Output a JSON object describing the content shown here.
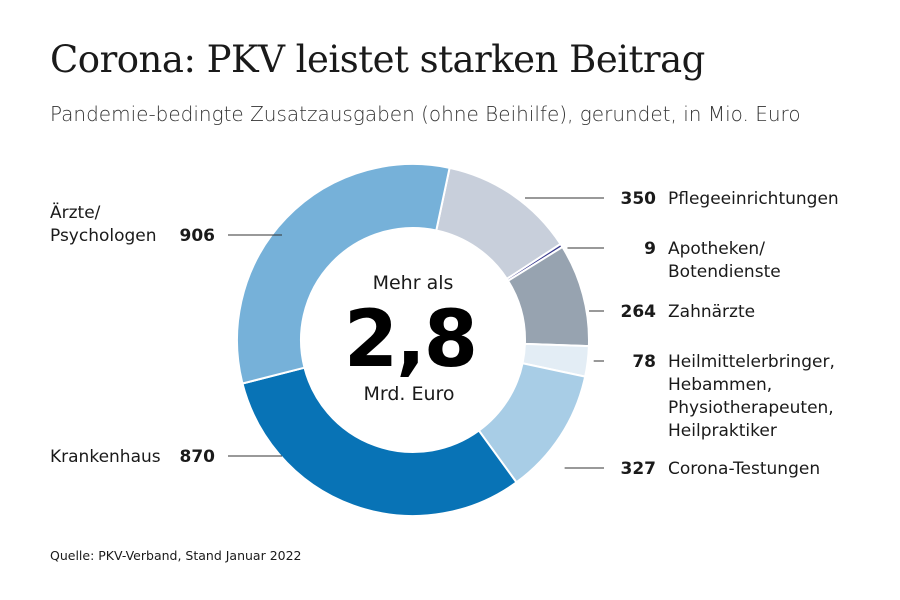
{
  "title": "Corona: PKV leistet starken Beitrag",
  "subtitle": "Pandemie-bedingte Zusatzausgaben (ohne Beihilfe), gerundet, in Mio. Euro",
  "source": "Quelle: PKV-Verband, Stand Januar 2022",
  "center": {
    "top": "Mehr als",
    "value": "2,8",
    "bottom": "Mrd. Euro"
  },
  "chart_data": {
    "type": "pie",
    "variant": "donut",
    "unit": "Mio. Euro",
    "order": "clockwise from top",
    "slices": [
      {
        "label_lines": [
          "Pflegeeinrichtungen"
        ],
        "value": 350,
        "value_text": "350",
        "color": "#c8cfdb",
        "side": "right"
      },
      {
        "label_lines": [
          "Apotheken/",
          "Botendienste"
        ],
        "value": 9,
        "value_text": "9",
        "color": "#3a3b8e",
        "side": "right"
      },
      {
        "label_lines": [
          "Zahnärzte"
        ],
        "value": 264,
        "value_text": "264",
        "color": "#97a3b0",
        "side": "right"
      },
      {
        "label_lines": [
          "Heilmittelerbringer,",
          "Hebammen,",
          "Physiotherapeuten,",
          "Heilpraktiker"
        ],
        "value": 78,
        "value_text": "78",
        "color": "#e3edf5",
        "side": "right"
      },
      {
        "label_lines": [
          "Corona-Testungen"
        ],
        "value": 327,
        "value_text": "327",
        "color": "#a8cde6",
        "side": "right"
      },
      {
        "label_lines": [
          "Krankenhaus"
        ],
        "value": 870,
        "value_text": "870",
        "color": "#0873b6",
        "side": "left"
      },
      {
        "label_lines": [
          "Ärzte/",
          "Psychologen"
        ],
        "value": 906,
        "value_text": "906",
        "color": "#76b1d9",
        "side": "left"
      }
    ]
  }
}
